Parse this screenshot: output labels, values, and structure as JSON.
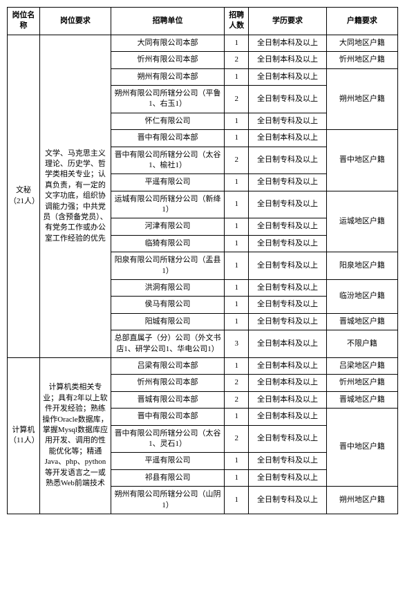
{
  "headers": {
    "post": "岗位名称",
    "req": "岗位要求",
    "unit": "招聘单位",
    "num": "招聘人数",
    "edu": "学历要求",
    "hukou": "户籍要求"
  },
  "group1": {
    "post": "文秘（21人）",
    "req": "文学、马克思主义理论、历史学、哲学类相关专业；认真负责，有一定的文字功底，组织协调能力强；中共党员（含预备党员）、有党务工作或办公室工作经验的优先",
    "rows": [
      {
        "unit": "大同有限公司本部",
        "num": "1",
        "edu": "全日制本科及以上",
        "hukou": "大同地区户籍",
        "hukourows": 1
      },
      {
        "unit": "忻州有限公司本部",
        "num": "2",
        "edu": "全日制本科及以上",
        "hukou": "忻州地区户籍",
        "hukourows": 1
      },
      {
        "unit": "朔州有限公司本部",
        "num": "1",
        "edu": "全日制本科及以上",
        "hukou": "朔州地区户籍",
        "hukourows": 3
      },
      {
        "unit": "朔州有限公司所辖分公司（平鲁1、右玉1）",
        "num": "2",
        "edu": "全日制专科及以上"
      },
      {
        "unit": "怀仁有限公司",
        "num": "1",
        "edu": "全日制专科及以上"
      },
      {
        "unit": "晋中有限公司本部",
        "num": "1",
        "edu": "全日制本科及以上",
        "hukou": "晋中地区户籍",
        "hukourows": 3
      },
      {
        "unit": "晋中有限公司所辖分公司（太谷1、榆社1）",
        "num": "2",
        "edu": "全日制专科及以上"
      },
      {
        "unit": "平遥有限公司",
        "num": "1",
        "edu": "全日制专科及以上"
      },
      {
        "unit": "运城有限公司所辖分公司（新绛1）",
        "num": "1",
        "edu": "全日制专科及以上",
        "hukou": "运城地区户籍",
        "hukourows": 3
      },
      {
        "unit": "河津有限公司",
        "num": "1",
        "edu": "全日制专科及以上"
      },
      {
        "unit": "临猗有限公司",
        "num": "1",
        "edu": "全日制专科及以上"
      },
      {
        "unit": "阳泉有限公司所辖分公司（盂县1）",
        "num": "1",
        "edu": "全日制专科及以上",
        "hukou": "阳泉地区户籍",
        "hukourows": 1
      },
      {
        "unit": "洪洞有限公司",
        "num": "1",
        "edu": "全日制专科及以上",
        "hukou": "临汾地区户籍",
        "hukourows": 2
      },
      {
        "unit": "侯马有限公司",
        "num": "1",
        "edu": "全日制专科及以上"
      },
      {
        "unit": "阳城有限公司",
        "num": "1",
        "edu": "全日制专科及以上",
        "hukou": "晋城地区户籍",
        "hukourows": 1
      },
      {
        "unit": "总部直属子（分）公司（外文书店1、研学公司1、华电公司1）",
        "num": "3",
        "edu": "全日制本科及以上",
        "hukou": "不限户籍",
        "hukourows": 1
      }
    ]
  },
  "group2": {
    "post": "计算机（11人）",
    "req": "计算机类相关专业；具有2年以上软件开发经验；熟练操作Oracle数据库，掌握Mysql数据库应用开发、调用的性能优化等；精通Java、php、python等开发语言之一或熟悉Web前端技术",
    "rows": [
      {
        "unit": "吕梁有限公司本部",
        "num": "1",
        "edu": "全日制本科及以上",
        "hukou": "吕梁地区户籍",
        "hukourows": 1
      },
      {
        "unit": "忻州有限公司本部",
        "num": "2",
        "edu": "全日制本科及以上",
        "hukou": "忻州地区户籍",
        "hukourows": 1
      },
      {
        "unit": "晋城有限公司本部",
        "num": "2",
        "edu": "全日制本科及以上",
        "hukou": "晋城地区户籍",
        "hukourows": 1
      },
      {
        "unit": "晋中有限公司本部",
        "num": "1",
        "edu": "全日制本科及以上",
        "hukou": "晋中地区户籍",
        "hukourows": 4
      },
      {
        "unit": "晋中有限公司所辖分公司（太谷1、灵石1）",
        "num": "2",
        "edu": "全日制专科及以上"
      },
      {
        "unit": "平遥有限公司",
        "num": "1",
        "edu": "全日制专科及以上"
      },
      {
        "unit": "祁县有限公司",
        "num": "1",
        "edu": "全日制专科及以上"
      },
      {
        "unit": "朔州有限公司所辖分公司（山阴1）",
        "num": "1",
        "edu": "全日制专科及以上",
        "hukou": "朔州地区户籍",
        "hukourows": 1
      }
    ]
  }
}
